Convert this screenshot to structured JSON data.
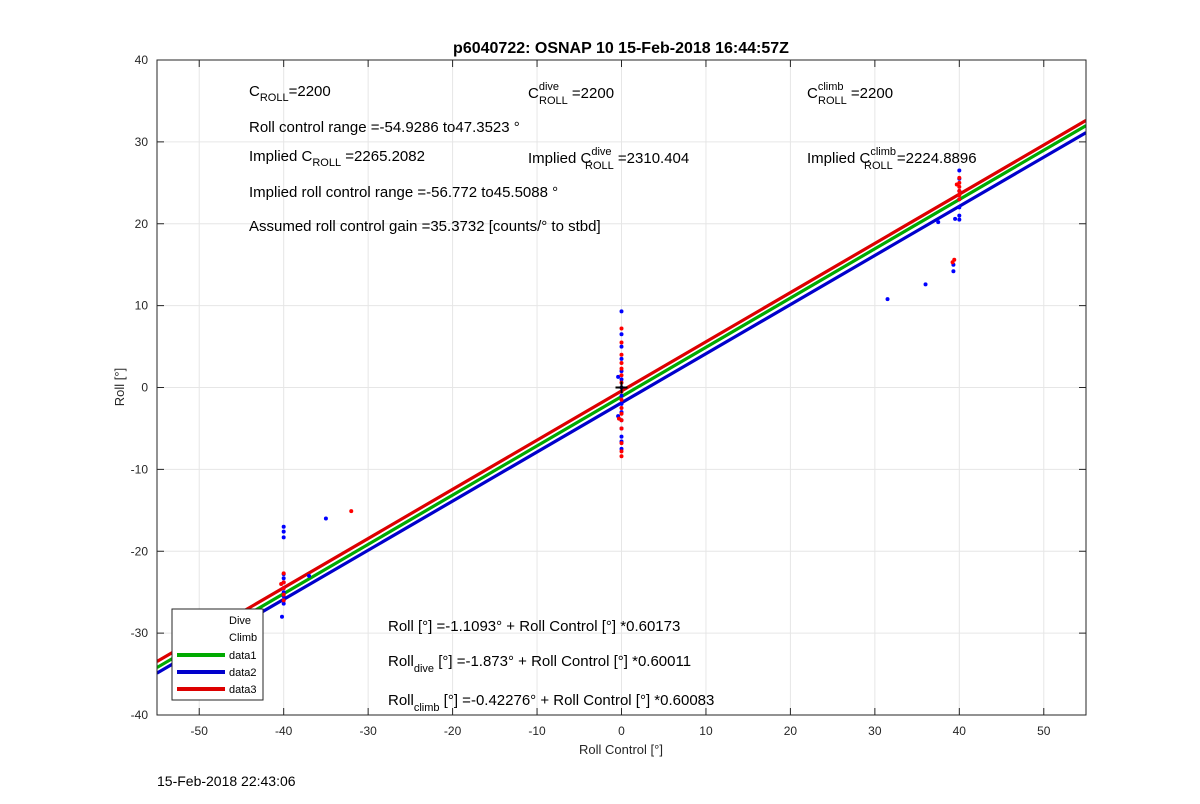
{
  "chart_data": {
    "type": "scatter",
    "title": "p6040722: OSNAP 10 15-Feb-2018 16:44:57Z",
    "xlabel": "Roll Control [°]",
    "ylabel": "Roll [°]",
    "xlim": [
      -55,
      55
    ],
    "ylim": [
      -40,
      40
    ],
    "xticks": [
      -50,
      -40,
      -30,
      -20,
      -10,
      0,
      10,
      20,
      30,
      40,
      50
    ],
    "yticks": [
      -40,
      -30,
      -20,
      -10,
      0,
      10,
      20,
      30,
      40
    ],
    "grid": true,
    "legend_position": "bottom-left",
    "legend": [
      "Dive",
      "Climb",
      "data1",
      "data2",
      "data3"
    ],
    "series": [
      {
        "name": "Dive",
        "color": "#0000ff",
        "marker": "dot",
        "points": [
          [
            -40,
            -17
          ],
          [
            -40,
            -17.6
          ],
          [
            -40,
            -18.3
          ],
          [
            -40,
            -22.8
          ],
          [
            -40,
            -23.3
          ],
          [
            -40,
            -23.8
          ],
          [
            -40,
            -24.5
          ],
          [
            -40,
            -25
          ],
          [
            -40,
            -25.5
          ],
          [
            -40,
            -26
          ],
          [
            -40,
            -26.4
          ],
          [
            -40.2,
            -28
          ],
          [
            -49.7,
            -28.4
          ],
          [
            -35,
            -16
          ],
          [
            -37,
            -23
          ],
          [
            0,
            9.3
          ],
          [
            0,
            6.5
          ],
          [
            0,
            5
          ],
          [
            0,
            3.5
          ],
          [
            0,
            2
          ],
          [
            0,
            1
          ],
          [
            0,
            0
          ],
          [
            0,
            -1
          ],
          [
            0,
            -2
          ],
          [
            0,
            -3
          ],
          [
            0,
            -4
          ],
          [
            0,
            -5
          ],
          [
            0,
            -6
          ],
          [
            0,
            -6.6
          ],
          [
            0,
            -7.5
          ],
          [
            -0.4,
            1.3
          ],
          [
            -0.4,
            -3.5
          ],
          [
            40,
            26.5
          ],
          [
            40,
            25.5
          ],
          [
            40,
            24
          ],
          [
            40,
            23
          ],
          [
            40,
            22
          ],
          [
            40,
            21
          ],
          [
            40,
            20.5
          ],
          [
            39.5,
            20.6
          ],
          [
            39.3,
            15
          ],
          [
            39.3,
            14.2
          ],
          [
            36,
            12.6
          ],
          [
            31.5,
            10.8
          ],
          [
            37.5,
            20.2
          ]
        ]
      },
      {
        "name": "Climb",
        "color": "#ff0000",
        "marker": "dot",
        "points": [
          [
            -40,
            -22.7
          ],
          [
            -40,
            -23.8
          ],
          [
            -40,
            -24.5
          ],
          [
            -40,
            -25.3
          ],
          [
            -40,
            -26
          ],
          [
            -32,
            -15.1
          ],
          [
            -40.3,
            -24
          ],
          [
            0,
            7.2
          ],
          [
            0,
            5.5
          ],
          [
            0,
            4
          ],
          [
            0,
            3
          ],
          [
            0,
            2.3
          ],
          [
            0,
            1.5
          ],
          [
            0,
            0.6
          ],
          [
            0,
            -0.5
          ],
          [
            0,
            -1.5
          ],
          [
            0,
            -2.5
          ],
          [
            0,
            -3.2
          ],
          [
            0,
            -4
          ],
          [
            0,
            -5
          ],
          [
            0,
            -6.8
          ],
          [
            0,
            -7.8
          ],
          [
            0,
            -8.4
          ],
          [
            -0.3,
            -3.8
          ],
          [
            40,
            25.6
          ],
          [
            40,
            25
          ],
          [
            40,
            24.5
          ],
          [
            40,
            24
          ],
          [
            40,
            23.5
          ],
          [
            40,
            23
          ],
          [
            39.7,
            24.8
          ],
          [
            39.4,
            15.6
          ],
          [
            39.2,
            15.3
          ]
        ]
      },
      {
        "name": "data1",
        "color": "#00aa00",
        "type": "line",
        "intercept": -1.1093,
        "slope": 0.60173
      },
      {
        "name": "data2",
        "color": "#0000cc",
        "type": "line",
        "intercept": -1.873,
        "slope": 0.60011
      },
      {
        "name": "data3",
        "color": "#dd0000",
        "type": "line",
        "intercept": -0.42276,
        "slope": 0.60083
      }
    ],
    "annotations": {
      "c_roll": {
        "main": "C",
        "sub": "ROLL",
        "rest": "=2200"
      },
      "c_roll_dive": {
        "main": "C",
        "sup": "dive",
        "sub": "ROLL",
        "rest": " =2200"
      },
      "c_roll_climb": {
        "main": "C",
        "sup": "climb",
        "sub": "ROLL",
        "rest": " =2200"
      },
      "roll_range": "Roll control range =-54.9286 to47.3523 °",
      "implied_c_roll": {
        "main": "Implied C",
        "sub": "ROLL",
        "rest": " =2265.2082"
      },
      "implied_c_roll_dive": {
        "main": "Implied C",
        "sup": "dive",
        "sub": "ROLL",
        "rest": " =2310.404"
      },
      "implied_c_roll_climb": {
        "main": "Implied C",
        "sup": "climb",
        "sub": "ROLL",
        "rest": " =2224.8896"
      },
      "implied_range": "Implied roll control range =-56.772 to45.5088 °",
      "gain": "Assumed roll control gain =35.3732 [counts/° to stbd]",
      "fit_all": "Roll [°] =-1.1093° + Roll Control [°] *0.60173",
      "fit_dive": {
        "main": "Roll",
        "sub": "dive",
        "rest": " [°] =-1.873° + Roll Control [°] *0.60011"
      },
      "fit_climb": {
        "main": "Roll",
        "sub": "climb",
        "rest": " [°] =-0.42276° + Roll Control [°] *0.60083"
      }
    }
  },
  "footer": {
    "timestamp": "15-Feb-2018 22:43:06"
  }
}
